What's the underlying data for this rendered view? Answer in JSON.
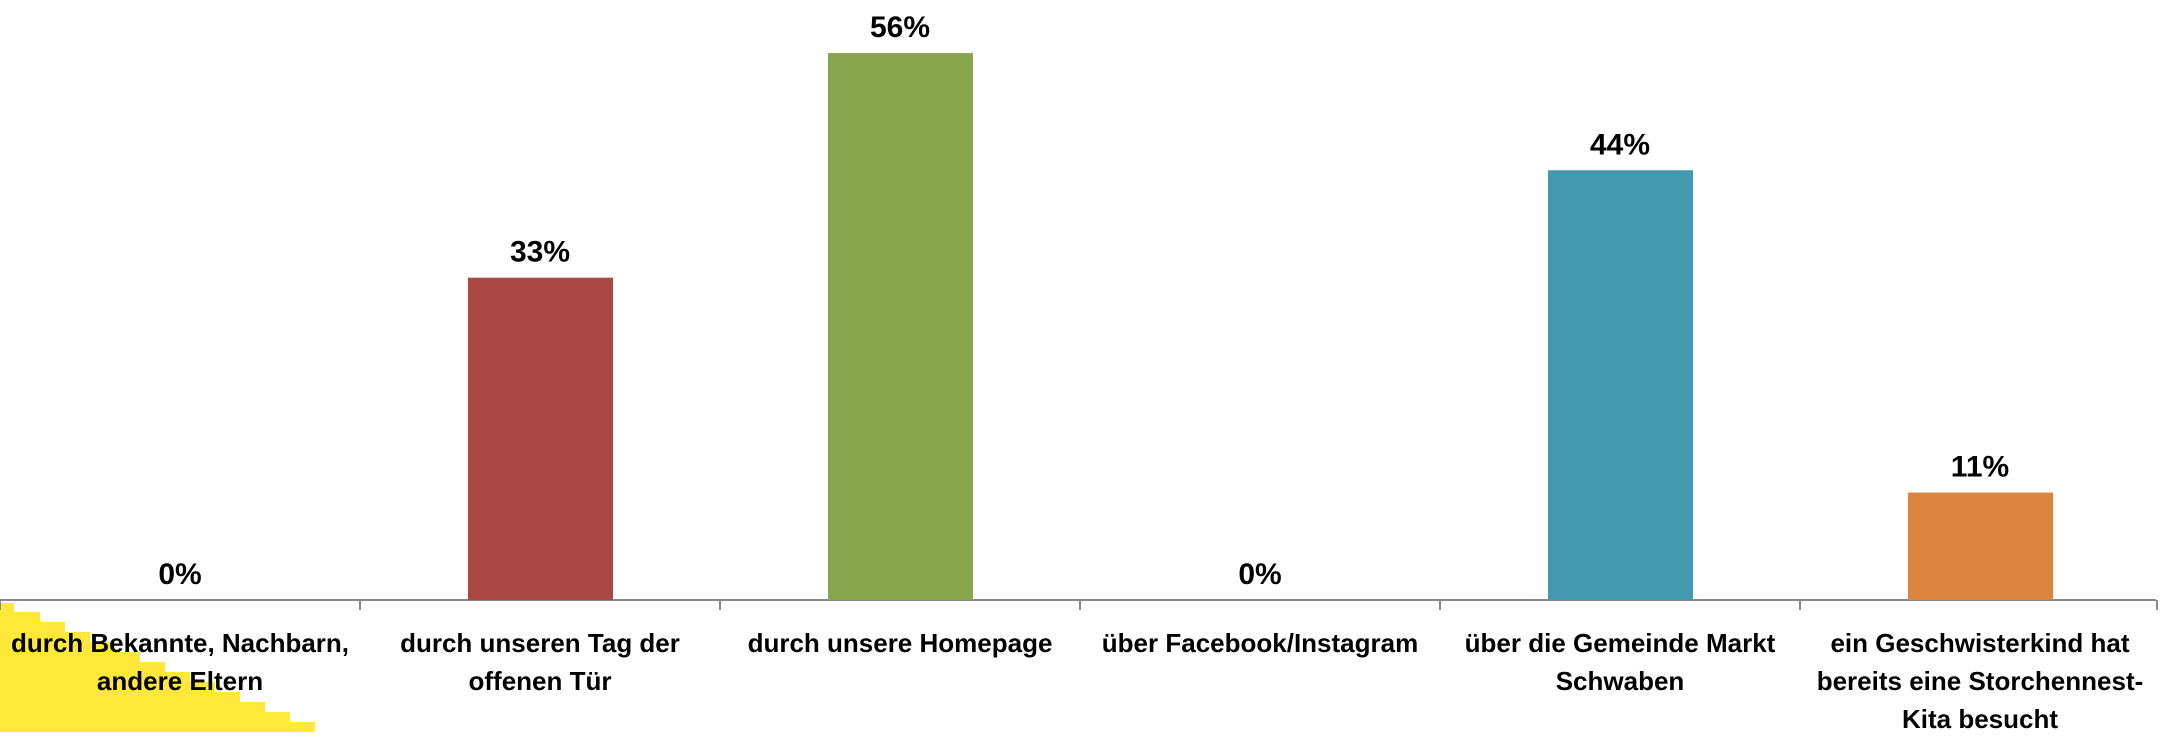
{
  "chart_data": {
    "type": "bar",
    "categories": [
      "durch Bekannte, Nachbarn, andere Eltern",
      "durch unseren Tag der offenen Tür",
      "durch unsere Homepage",
      "über Facebook/Instagram",
      "über die Gemeinde Markt Schwaben",
      "ein Geschwisterkind hat bereits eine Storchennest-Kita besucht"
    ],
    "values": [
      0,
      33,
      56,
      0,
      44,
      11
    ],
    "value_labels": [
      "0%",
      "33%",
      "56%",
      "0%",
      "44%",
      "11%"
    ],
    "colors": [
      "#4f81bd",
      "#aa4644",
      "#89a54e",
      "#71588f",
      "#4198af",
      "#db843d"
    ],
    "ylim": [
      0,
      60
    ]
  }
}
